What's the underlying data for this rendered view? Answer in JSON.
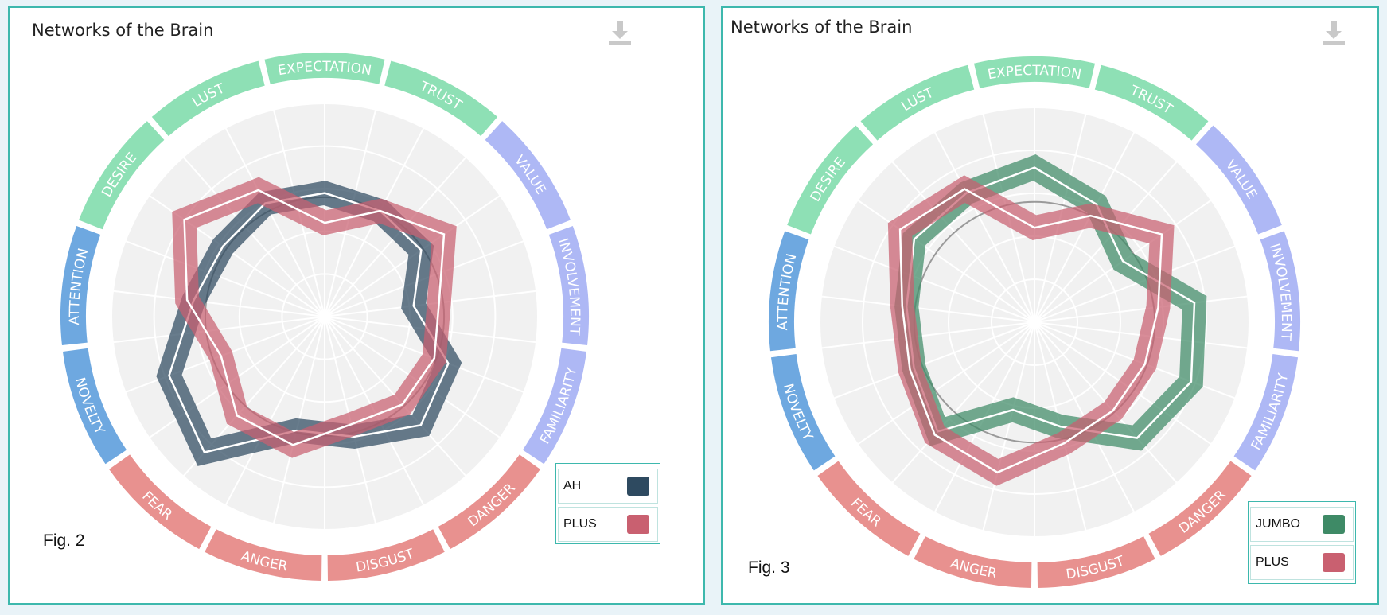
{
  "panels": [
    {
      "title": "Networks of the Brain",
      "fig_label": "Fig. 2",
      "download_icon": "download-icon"
    },
    {
      "title": "Networks of the Brain",
      "fig_label": "Fig. 3",
      "download_icon": "download-icon"
    }
  ],
  "chart_data": [
    {
      "type": "radar",
      "title": "Networks of the Brain",
      "axes": [
        "EXPECTATION",
        "TRUST",
        "VALUE",
        "INVOLVEMENT",
        "FAMILIARITY",
        "DANGER",
        "DISGUST",
        "ANGER",
        "FEAR",
        "NOVELTY",
        "ATTENTION",
        "DESIRE",
        "LUST"
      ],
      "axis_colors": [
        "#8ee0b5",
        "#8ee0b5",
        "#aeb8f5",
        "#aeb8f5",
        "#aeb8f5",
        "#e8918f",
        "#e8918f",
        "#e8918f",
        "#e8918f",
        "#6ea8e0",
        "#6ea8e0",
        "#8ee0b5",
        "#8ee0b5"
      ],
      "rlim": [
        0,
        1
      ],
      "reference_circle": 0.56,
      "series": [
        {
          "name": "AH",
          "color": "#2e4a60",
          "values": [
            0.58,
            0.56,
            0.55,
            0.42,
            0.62,
            0.68,
            0.58,
            0.55,
            0.85,
            0.78,
            0.62,
            0.58,
            0.6
          ]
        },
        {
          "name": "PLUS",
          "color": "#c96070",
          "values": [
            0.44,
            0.56,
            0.68,
            0.54,
            0.55,
            0.55,
            0.52,
            0.62,
            0.62,
            0.52,
            0.65,
            0.8,
            0.67
          ]
        }
      ],
      "legend": [
        "AH",
        "PLUS"
      ]
    },
    {
      "type": "radar",
      "title": "Networks of the Brain",
      "axes": [
        "EXPECTATION",
        "TRUST",
        "VALUE",
        "INVOLVEMENT",
        "FAMILIARITY",
        "DANGER",
        "DISGUST",
        "ANGER",
        "FEAR",
        "NOVELTY",
        "ATTENTION",
        "DESIRE",
        "LUST"
      ],
      "axis_colors": [
        "#8ee0b5",
        "#8ee0b5",
        "#aeb8f5",
        "#aeb8f5",
        "#aeb8f5",
        "#e8918f",
        "#e8918f",
        "#e8918f",
        "#e8918f",
        "#6ea8e0",
        "#6ea8e0",
        "#8ee0b5",
        "#8ee0b5"
      ],
      "rlim": [
        0,
        1
      ],
      "reference_circle": 0.56,
      "series": [
        {
          "name": "JUMBO",
          "color": "#3e8a66",
          "values": [
            0.72,
            0.62,
            0.5,
            0.75,
            0.78,
            0.72,
            0.5,
            0.42,
            0.68,
            0.6,
            0.6,
            0.68,
            0.68
          ]
        },
        {
          "name": "PLUS",
          "color": "#c96070",
          "values": [
            0.44,
            0.56,
            0.72,
            0.58,
            0.55,
            0.55,
            0.58,
            0.72,
            0.7,
            0.62,
            0.62,
            0.76,
            0.7
          ]
        }
      ],
      "legend": [
        "JUMBO",
        "PLUS"
      ]
    }
  ]
}
